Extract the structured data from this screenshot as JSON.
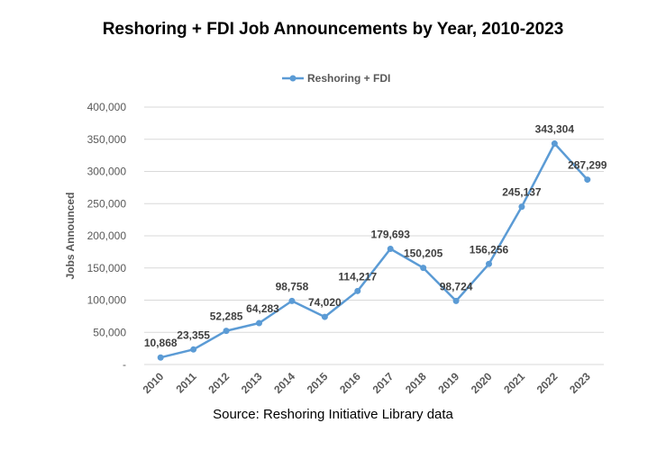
{
  "chart_data": {
    "type": "line",
    "title": "Reshoring + FDI Job Announcements by Year, 2010-2023",
    "ylabel": "Jobs Announced",
    "xlabel": "",
    "x": [
      "2010",
      "2011",
      "2012",
      "2013",
      "2014",
      "2015",
      "2016",
      "2017",
      "2018",
      "2019",
      "2020",
      "2021",
      "2022",
      "2023"
    ],
    "series": [
      {
        "name": "Reshoring + FDI",
        "color": "#5b9bd5",
        "values": [
          10868,
          23355,
          52285,
          64283,
          98758,
          74020,
          114217,
          179693,
          150205,
          98724,
          156256,
          245137,
          343304,
          287299
        ],
        "labels": [
          "10,868",
          "23,355",
          "52,285",
          "64,283",
          "98,758",
          "74,020",
          "114,217",
          "179,693",
          "150,205",
          "98,724",
          "156,256",
          "245,137",
          "343,304",
          "287,299"
        ]
      }
    ],
    "ylim": [
      0,
      400000
    ],
    "yticks": [
      0,
      50000,
      100000,
      150000,
      200000,
      250000,
      300000,
      350000,
      400000
    ],
    "ytick_labels": [
      "-",
      "50,000",
      "100,000",
      "150,000",
      "200,000",
      "250,000",
      "300,000",
      "350,000",
      "400,000"
    ],
    "grid": true,
    "legend_position": "top"
  },
  "source": "Source: Reshoring Initiative Library data"
}
